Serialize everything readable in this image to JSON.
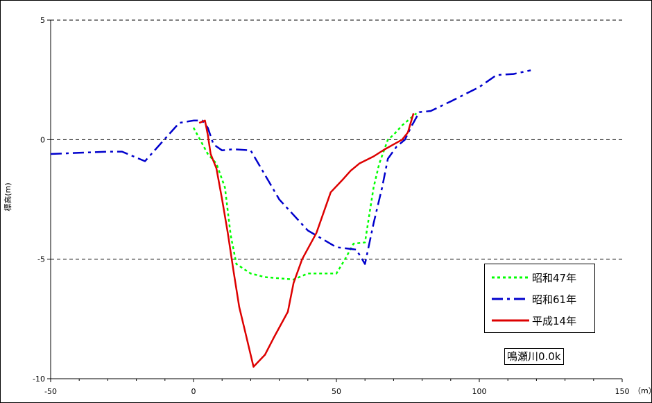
{
  "chart_data": {
    "type": "line",
    "title": "",
    "xlabel": "（m）",
    "ylabel": "標高(m)",
    "xlim": [
      -50,
      150
    ],
    "ylim": [
      -10,
      5
    ],
    "x_ticks": [
      "-50",
      "0",
      "50",
      "100",
      "150"
    ],
    "y_ticks": [
      "5",
      "0",
      "-5",
      "-10"
    ],
    "grid": "horizontal dashed at 5, 0, -5",
    "legend_position": "bottom-right",
    "annotation": "鳴瀬川0.0k",
    "series": [
      {
        "name": "昭和47年",
        "color": "#00ff00",
        "style": "dotted",
        "points": [
          [
            0,
            0.5
          ],
          [
            5,
            -0.6
          ],
          [
            8,
            -1.0
          ],
          [
            11,
            -2.0
          ],
          [
            13,
            -4.0
          ],
          [
            15,
            -5.2
          ],
          [
            20,
            -5.6
          ],
          [
            25,
            -5.75
          ],
          [
            30,
            -5.8
          ],
          [
            35,
            -5.85
          ],
          [
            40,
            -5.6
          ],
          [
            45,
            -5.6
          ],
          [
            50,
            -5.6
          ],
          [
            53,
            -5.0
          ],
          [
            56,
            -4.35
          ],
          [
            60,
            -4.3
          ],
          [
            63,
            -2.0
          ],
          [
            65,
            -1.0
          ],
          [
            68,
            0.0
          ],
          [
            70,
            0.2
          ],
          [
            73,
            0.6
          ],
          [
            76,
            0.9
          ],
          [
            78,
            1.1
          ]
        ]
      },
      {
        "name": "昭和61年",
        "color": "#0000cc",
        "style": "dashdot",
        "points": [
          [
            -50,
            -0.6
          ],
          [
            -40,
            -0.55
          ],
          [
            -30,
            -0.5
          ],
          [
            -25,
            -0.5
          ],
          [
            -17,
            -0.9
          ],
          [
            -8,
            0.3
          ],
          [
            -5,
            0.7
          ],
          [
            0,
            0.8
          ],
          [
            3,
            0.8
          ],
          [
            5,
            0.5
          ],
          [
            7,
            -0.2
          ],
          [
            10,
            -0.45
          ],
          [
            14,
            -0.4
          ],
          [
            20,
            -0.45
          ],
          [
            30,
            -2.5
          ],
          [
            40,
            -3.8
          ],
          [
            50,
            -4.5
          ],
          [
            57,
            -4.6
          ],
          [
            60,
            -5.2
          ],
          [
            63,
            -3.5
          ],
          [
            66,
            -2.0
          ],
          [
            68,
            -0.8
          ],
          [
            71,
            -0.3
          ],
          [
            74,
            0.0
          ],
          [
            76,
            0.5
          ],
          [
            79,
            1.15
          ],
          [
            83,
            1.2
          ],
          [
            90,
            1.6
          ],
          [
            100,
            2.2
          ],
          [
            106,
            2.7
          ],
          [
            112,
            2.75
          ],
          [
            118,
            2.9
          ]
        ]
      },
      {
        "name": "平成14年",
        "color": "#dd0000",
        "style": "solid",
        "points": [
          [
            2,
            0.7
          ],
          [
            4,
            0.8
          ],
          [
            5,
            0.2
          ],
          [
            6,
            -0.6
          ],
          [
            8,
            -1.2
          ],
          [
            10,
            -2.5
          ],
          [
            12,
            -3.9
          ],
          [
            14,
            -5.5
          ],
          [
            16,
            -7.0
          ],
          [
            18,
            -8.0
          ],
          [
            21,
            -9.5
          ],
          [
            25,
            -9.0
          ],
          [
            28,
            -8.3
          ],
          [
            33,
            -7.2
          ],
          [
            35,
            -6.0
          ],
          [
            38,
            -5.0
          ],
          [
            43,
            -3.9
          ],
          [
            48,
            -2.2
          ],
          [
            52,
            -1.7
          ],
          [
            55,
            -1.3
          ],
          [
            58,
            -1.0
          ],
          [
            63,
            -0.7
          ],
          [
            67,
            -0.4
          ],
          [
            70,
            -0.2
          ],
          [
            73,
            0.0
          ],
          [
            75,
            0.3
          ],
          [
            77,
            1.1
          ]
        ]
      }
    ]
  }
}
